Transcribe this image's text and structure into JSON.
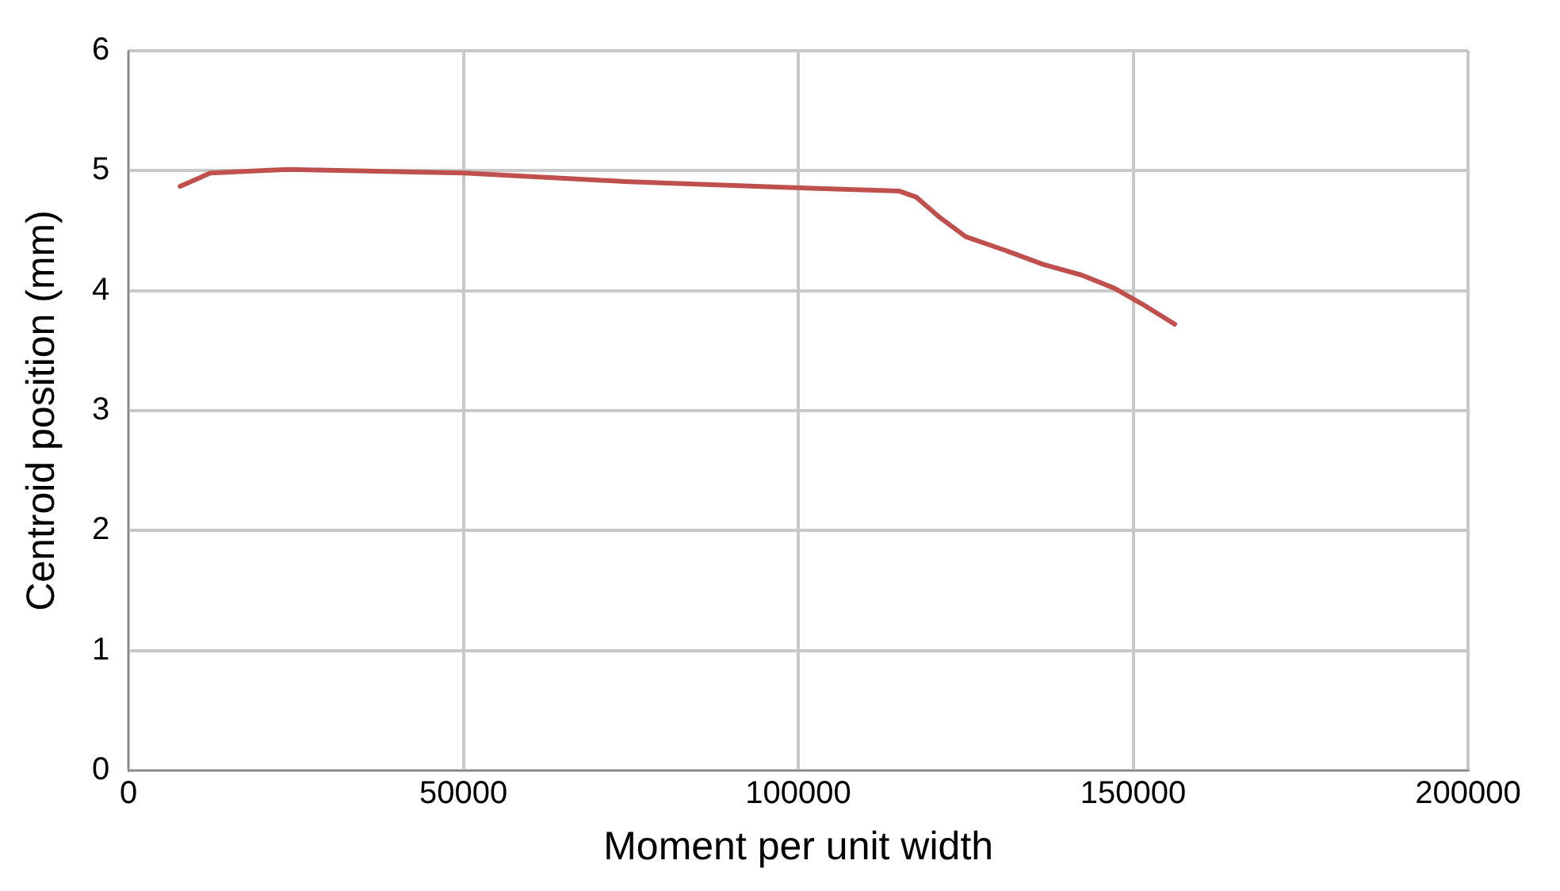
{
  "chart_data": {
    "type": "line",
    "xlabel": "Moment per unit width",
    "ylabel": "Centroid position (mm)",
    "x": [
      7700,
      12200,
      23700,
      32800,
      50100,
      74000,
      98600,
      115100,
      117600,
      120900,
      125000,
      130700,
      136500,
      142300,
      147200,
      151300,
      156200
    ],
    "series": [
      {
        "color": "#c0504d",
        "values": [
          4.87,
          4.98,
          5.01,
          5.0,
          4.98,
          4.91,
          4.86,
          4.83,
          4.78,
          4.62,
          4.45,
          4.34,
          4.22,
          4.13,
          4.02,
          3.89,
          3.72
        ]
      }
    ],
    "xlim": [
      0,
      200000
    ],
    "xticks": [
      0,
      50000,
      100000,
      150000,
      200000
    ],
    "ylim": [
      0,
      6
    ],
    "yticks": [
      0,
      1,
      2,
      3,
      4,
      5,
      6
    ],
    "grid": true,
    "legend": false,
    "marker": "none",
    "line_style": "solid"
  }
}
